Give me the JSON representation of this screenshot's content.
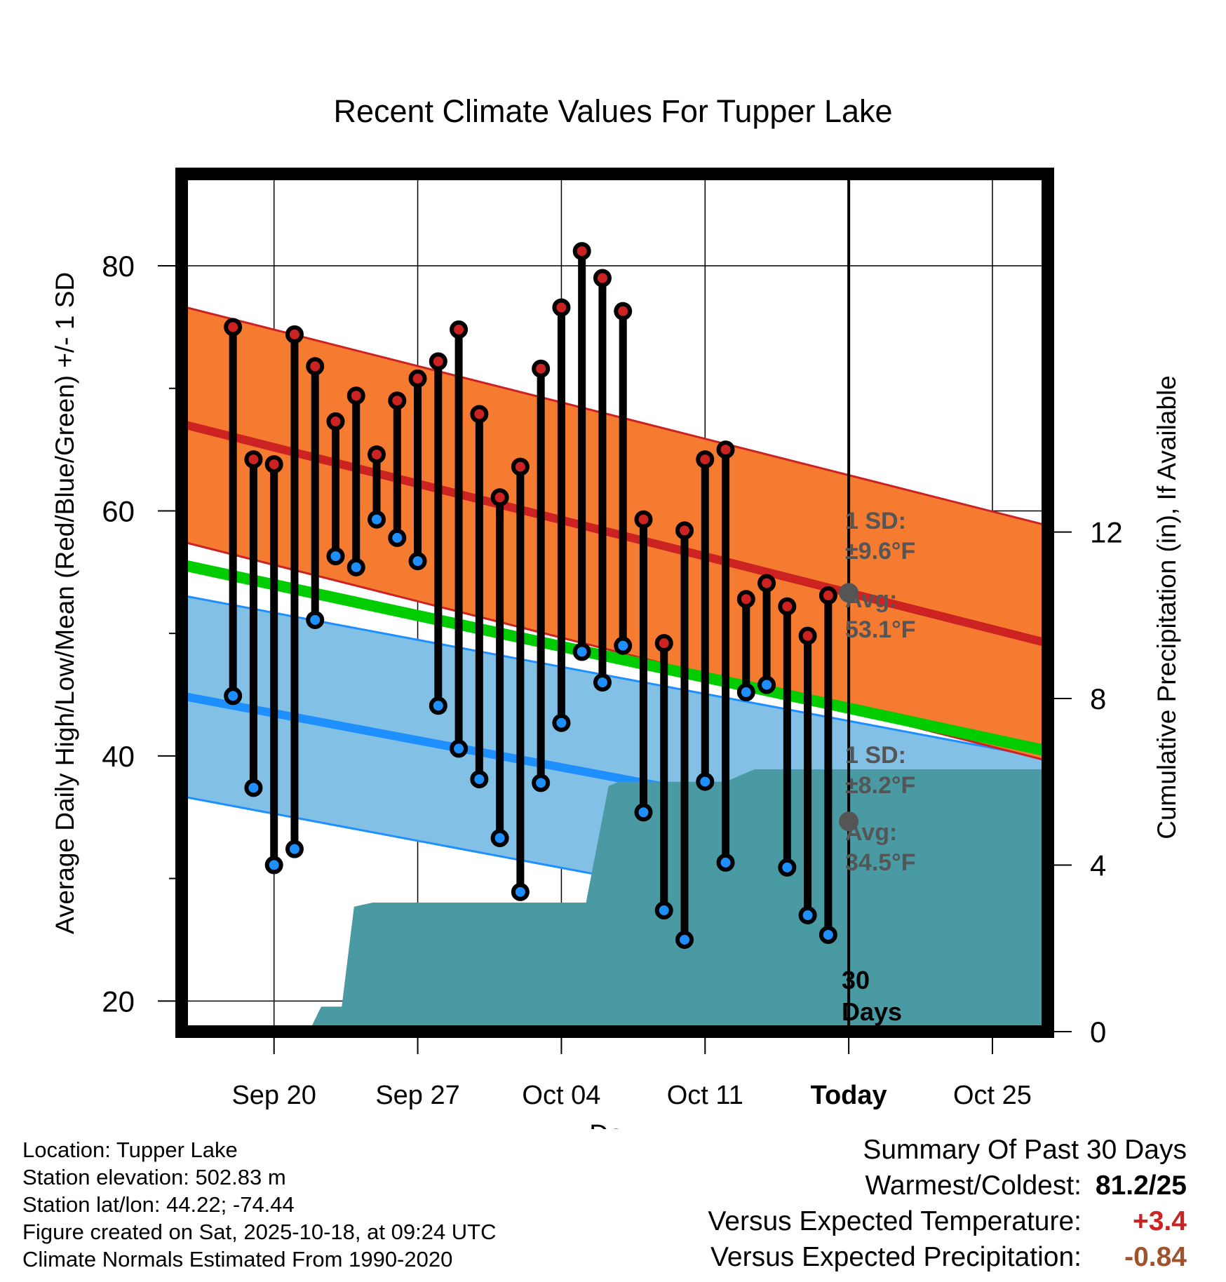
{
  "chart_data": {
    "type": "line",
    "title": "Recent Climate Values For Tupper Lake",
    "xlabel": "Day",
    "ylabel": "Average Daily High/Low/Mean (Red/Blue/Green) +/- 1 SD",
    "ylabel_right": "Cumulative Precipitation (in), If Available",
    "ylim": [
      17.5,
      87.5
    ],
    "ylim_right": [
      0,
      20.6
    ],
    "xlim_days": [
      -32.5,
      9.7
    ],
    "yticks": [
      20,
      40,
      60,
      80
    ],
    "yticks_right": [
      0,
      4,
      8,
      12
    ],
    "x_tick_labels": [
      {
        "day": -28,
        "label": "Sep 20"
      },
      {
        "day": -21,
        "label": "Sep 27"
      },
      {
        "day": -14,
        "label": "Oct 04"
      },
      {
        "day": -7,
        "label": "Oct 11"
      },
      {
        "day": 0,
        "label": "Today"
      },
      {
        "day": 7,
        "label": "Oct 25"
      }
    ],
    "normals": {
      "high_avg_start": 67.1,
      "high_avg_end": 49.2,
      "high_sd": 9.6,
      "low_avg_start": 44.9,
      "low_avg_end": 31.6,
      "low_sd": 8.2,
      "mean_start": 55.6,
      "mean_end": 40.4
    },
    "days": [
      -30,
      -29,
      -28,
      -27,
      -26,
      -25,
      -24,
      -23,
      -22,
      -21,
      -20,
      -19,
      -18,
      -17,
      -16,
      -15,
      -14,
      -13,
      -12,
      -11,
      -10,
      -9,
      -8,
      -7,
      -6,
      -5,
      -4,
      -3,
      -2,
      -1
    ],
    "highs": [
      75.0,
      64.2,
      63.8,
      74.4,
      71.8,
      67.3,
      69.4,
      64.6,
      69.0,
      70.8,
      72.2,
      74.8,
      67.9,
      61.1,
      63.6,
      71.6,
      76.6,
      81.2,
      79.0,
      76.3,
      59.3,
      49.2,
      58.4,
      64.2,
      65.0,
      52.8,
      54.1,
      52.2,
      49.8,
      53.1
    ],
    "lows": [
      44.9,
      37.4,
      31.1,
      32.4,
      51.1,
      56.3,
      55.4,
      59.3,
      57.8,
      55.9,
      44.1,
      40.6,
      38.1,
      33.3,
      28.9,
      37.8,
      42.7,
      48.5,
      46.0,
      49.0,
      35.4,
      27.4,
      25.0,
      37.9,
      31.3,
      45.2,
      45.8,
      30.9,
      27.0,
      25.4
    ],
    "precip_days": [
      -32.5,
      -27.4,
      -26.2,
      -25.7,
      -24.7,
      -24.1,
      -23.2,
      -22.6,
      -15.8,
      -12.8,
      -11.7,
      -11.2,
      -8.9,
      -7.7,
      -6.0,
      -4.6,
      0,
      9.7
    ],
    "precip_cumulative": [
      0,
      0,
      0.1,
      0.6,
      0.6,
      3.0,
      3.1,
      3.1,
      3.1,
      3.1,
      5.9,
      6.0,
      6.0,
      6.0,
      6.0,
      6.3,
      6.3,
      6.3
    ],
    "annotations": {
      "high_sd_label": "1 SD:",
      "high_sd_value": "±9.6°F",
      "high_avg_label": "Avg:",
      "high_avg_value": "53.1°F",
      "low_sd_label": "1 SD:",
      "low_sd_value": "±8.2°F",
      "low_avg_label": "Avg:",
      "low_avg_value": "34.5°F",
      "period_value": "30",
      "period_unit": "Days"
    },
    "colors": {
      "high_band": "#f47b30",
      "high_line": "#cc2222",
      "low_band": "#82c0e6",
      "low_line": "#1e8fff",
      "mean_line": "#00cc00",
      "precip": "#4a9aa3",
      "high_dot": "#cc2222",
      "low_dot": "#1e8fff",
      "avg_dot": "#555555",
      "annotation": "#555555"
    }
  },
  "footer": {
    "location": "Location: Tupper Lake",
    "elevation": "Station elevation: 502.83 m",
    "latlon": "Station lat/lon: 44.22; -74.44",
    "created": "Figure created on Sat, 2025-10-18, at 09:24 UTC",
    "normals": "Climate Normals Estimated From 1990-2020"
  },
  "summary": {
    "title": "Summary Of Past 30 Days",
    "warmest_label": "Warmest/Coldest:",
    "warmest_value": "81.2/25",
    "temp_label": "Versus Expected Temperature:",
    "temp_value": "+3.4",
    "temp_color": "#cc2222",
    "precip_label": "Versus Expected Precipitation:",
    "precip_value": "-0.84",
    "precip_color": "#a0522d"
  }
}
